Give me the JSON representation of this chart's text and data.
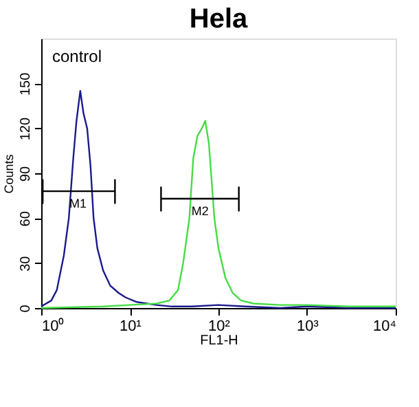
{
  "chart_data": {
    "type": "line",
    "title": "Hela",
    "xlabel": "FL1-H",
    "ylabel": "Counts",
    "log": "x",
    "xlim": [
      1,
      10000
    ],
    "xticks": [
      {
        "value": 1,
        "label": "10⁰"
      },
      {
        "value": 10,
        "label": "10¹"
      },
      {
        "value": 100,
        "label": "10²"
      },
      {
        "value": 1000,
        "label": "10³"
      },
      {
        "value": 10000,
        "label": "10⁴"
      }
    ],
    "ylim": [
      0,
      180
    ],
    "yticks": [
      0,
      30,
      60,
      90,
      120,
      150
    ],
    "grid": false,
    "series": [
      {
        "color": "#1a1a8c",
        "x": [
          1.0,
          1.3,
          1.5,
          1.8,
          2.05,
          2.3,
          2.5,
          2.76,
          3.0,
          3.3,
          3.6,
          3.9,
          4.3,
          5,
          6,
          7.5,
          9,
          12,
          20,
          30,
          50,
          100,
          200,
          500,
          1000,
          3000,
          10000
        ],
        "values": [
          1,
          5,
          12,
          35,
          60,
          100,
          125,
          145,
          130,
          120,
          95,
          60,
          40,
          25,
          15,
          10,
          7,
          4,
          2,
          1,
          1,
          2,
          1,
          0,
          1,
          0,
          0
        ]
      },
      {
        "color": "#44dd44",
        "x": [
          1,
          5,
          10,
          20,
          28,
          35,
          40,
          47,
          52,
          58,
          65,
          71,
          78,
          85,
          90,
          100,
          120,
          145,
          180,
          250,
          500,
          1000,
          3000,
          10000
        ],
        "values": [
          0,
          1,
          2,
          3,
          5,
          12,
          30,
          60,
          100,
          115,
          120,
          125,
          110,
          80,
          60,
          40,
          20,
          10,
          5,
          3,
          2,
          2,
          1,
          1
        ]
      },
      {
        "color": "#000000",
        "x": [
          1.04,
          1.04,
          1.04,
          6.8,
          6.8,
          6.8
        ],
        "values": [
          86,
          70,
          78,
          78,
          70,
          86
        ]
      },
      {
        "color": "#000000",
        "x": [
          22.5,
          22.5,
          22.5,
          170,
          170,
          170
        ],
        "values": [
          81,
          65,
          73,
          73,
          65,
          81
        ]
      }
    ],
    "annotations": [
      "control",
      {
        "text": "M1",
        "x": 2.6,
        "y": 78
      },
      {
        "text": "M2",
        "x": 62,
        "y": 73
      }
    ]
  }
}
